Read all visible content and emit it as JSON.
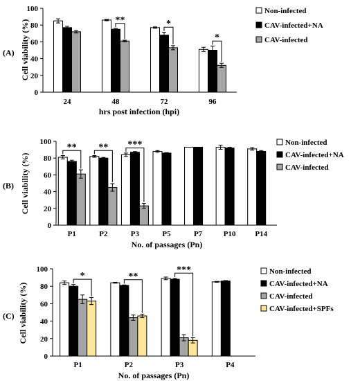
{
  "chart_data": [
    {
      "type": "bar",
      "panel_label": "(A)",
      "categories": [
        "24",
        "48",
        "72",
        "96"
      ],
      "xlabel": "hrs post infection (hpi)",
      "ylabel": "Cell viability (%)",
      "ylim": [
        0,
        100
      ],
      "yticks": [
        0,
        20,
        40,
        60,
        80,
        100
      ],
      "series": [
        {
          "name": "Non-infected",
          "values": [
            85,
            86,
            77,
            51
          ],
          "errors": [
            2.5,
            0.8,
            0.8,
            2.5
          ]
        },
        {
          "name": "CAV-infected+NA",
          "values": [
            77,
            75,
            68,
            50
          ],
          "errors": [
            1.5,
            1,
            3.5,
            5
          ]
        },
        {
          "name": "CAV-infected",
          "values": [
            72,
            61,
            53,
            32
          ],
          "errors": [
            1.5,
            1,
            2.5,
            2.5
          ]
        }
      ],
      "significance": [
        {
          "category_index": 1,
          "from_series": 1,
          "to_series": 2,
          "label": "**"
        },
        {
          "category_index": 2,
          "from_series": 1,
          "to_series": 2,
          "label": "*"
        },
        {
          "category_index": 3,
          "from_series": 1,
          "to_series": 2,
          "label": "*"
        }
      ],
      "legend_position": "right"
    },
    {
      "type": "bar",
      "panel_label": "(B)",
      "categories": [
        "P1",
        "P2",
        "P3",
        "P5",
        "P7",
        "P10",
        "P14"
      ],
      "xlabel": "No. of passages (Pn)",
      "ylabel": "Cell viability (%)",
      "ylim": [
        0,
        100
      ],
      "yticks": [
        0,
        20,
        40,
        60,
        80,
        100
      ],
      "series": [
        {
          "name": "Non-infected",
          "values": [
            81,
            82,
            84,
            88,
            93,
            93,
            91
          ],
          "errors": [
            2,
            1,
            2,
            1,
            0,
            2.5,
            1.5
          ]
        },
        {
          "name": "CAV-infected+NA",
          "values": [
            76,
            80,
            87,
            86,
            93,
            92,
            88
          ],
          "errors": [
            1.5,
            0.8,
            0.8,
            0.5,
            0,
            1,
            1
          ]
        },
        {
          "name": "CAV-infected",
          "values": [
            61,
            45,
            23,
            null,
            null,
            null,
            null
          ],
          "errors": [
            5,
            4.5,
            3,
            null,
            null,
            null,
            null
          ]
        }
      ],
      "significance": [
        {
          "category_index": 0,
          "from_series": 0,
          "to_series": 2,
          "label": "**"
        },
        {
          "category_index": 1,
          "from_series": 0,
          "to_series": 2,
          "label": "**"
        },
        {
          "category_index": 2,
          "from_series": 0,
          "to_series": 2,
          "label": "***"
        }
      ],
      "legend_position": "right"
    },
    {
      "type": "bar",
      "panel_label": "(C)",
      "categories": [
        "P1",
        "P2",
        "P3",
        "P4"
      ],
      "xlabel": "No. of passages (Pn)",
      "ylabel": "Cell viability (%)",
      "ylim": [
        0,
        100
      ],
      "yticks": [
        0,
        20,
        40,
        60,
        80,
        100
      ],
      "series": [
        {
          "name": "Non-infected",
          "values": [
            84,
            84,
            89,
            85
          ],
          "errors": [
            2,
            0.5,
            1.5,
            0.5
          ]
        },
        {
          "name": "CAV-infected+NA",
          "values": [
            80,
            81,
            88,
            86
          ],
          "errors": [
            2,
            0.5,
            1,
            0.5
          ]
        },
        {
          "name": "CAV-infected",
          "values": [
            65,
            44,
            21,
            null
          ],
          "errors": [
            5,
            3,
            3.5,
            null
          ]
        },
        {
          "name": "CAV-infected+SPFs",
          "values": [
            63,
            46,
            18,
            null
          ],
          "errors": [
            4,
            2,
            3,
            null
          ]
        }
      ],
      "significance": [
        {
          "category_index": 0,
          "from_series": 1,
          "to_series": 3,
          "label": "*"
        },
        {
          "category_index": 1,
          "from_series": 1,
          "to_series": 3,
          "label": "**"
        },
        {
          "category_index": 2,
          "from_series": 1,
          "to_series": 3,
          "label": "***"
        }
      ],
      "legend_position": "right"
    }
  ],
  "colors": {
    "series": [
      "#ffffff",
      "#000000",
      "#a6a6a6",
      "#ffe699"
    ],
    "outline": "#000000"
  }
}
